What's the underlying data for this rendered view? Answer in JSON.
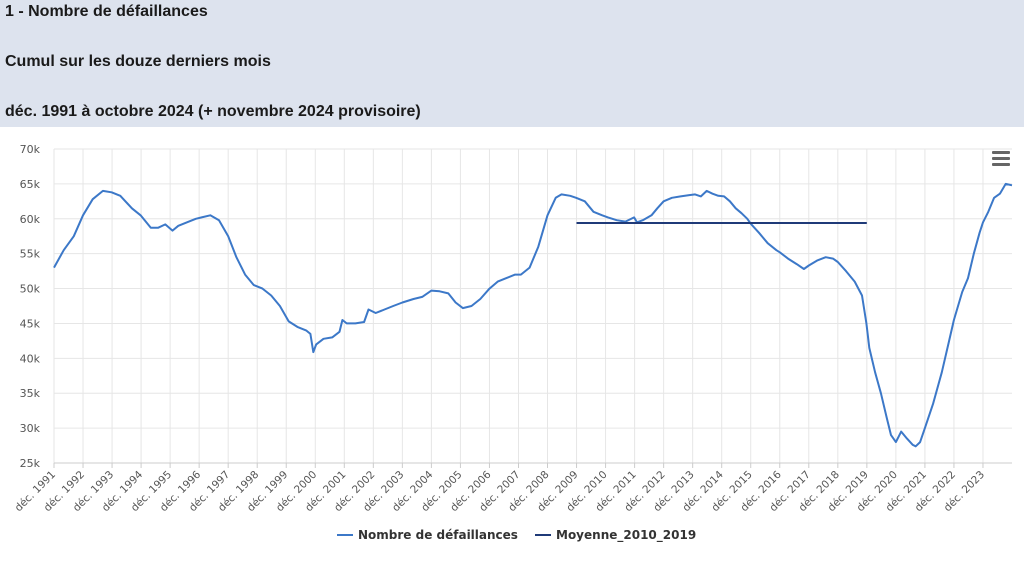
{
  "header": {
    "line1": "1 - Nombre de défaillances",
    "line2": "Cumul sur les douze derniers mois",
    "line3": "déc. 1991 à octobre 2024 (+ novembre 2024 provisoire)"
  },
  "colors": {
    "header_bg": "#dde3ee",
    "series_main": "#3c78c8",
    "series_avg": "#1f3a78",
    "grid": "#e6e6e6"
  },
  "menu_icon": "hamburger-menu-icon",
  "chart_data": {
    "type": "line",
    "title": "1 - Nombre de défaillances",
    "subtitle": "Cumul sur les douze derniers mois — déc. 1991 à octobre 2024 (+ novembre 2024 provisoire)",
    "xlabel": "",
    "ylabel": "",
    "ylim": [
      25000,
      70000
    ],
    "xlim": [
      1991.917,
      2024.917
    ],
    "grid": true,
    "legend": "bottom-center",
    "y_ticks": [
      "25k",
      "30k",
      "35k",
      "40k",
      "45k",
      "50k",
      "55k",
      "60k",
      "65k",
      "70k"
    ],
    "x_ticks": [
      "déc. 1991",
      "déc. 1992",
      "déc. 1993",
      "déc. 1994",
      "déc. 1995",
      "déc. 1996",
      "déc. 1997",
      "déc. 1998",
      "déc. 1999",
      "déc. 2000",
      "déc. 2001",
      "déc. 2002",
      "déc. 2003",
      "déc. 2004",
      "déc. 2005",
      "déc. 2006",
      "déc. 2007",
      "déc. 2008",
      "déc. 2009",
      "déc. 2010",
      "déc. 2011",
      "déc. 2012",
      "déc. 2013",
      "déc. 2014",
      "déc. 2015",
      "déc. 2016",
      "déc. 2017",
      "déc. 2018",
      "déc. 2019",
      "déc. 2020",
      "déc. 2021",
      "déc. 2022",
      "déc. 2023"
    ],
    "series": [
      {
        "name": "Nombre de défaillances",
        "points": [
          [
            1991.917,
            53000
          ],
          [
            1992.25,
            55500
          ],
          [
            1992.6,
            57500
          ],
          [
            1992.917,
            60500
          ],
          [
            1993.25,
            62800
          ],
          [
            1993.6,
            64000
          ],
          [
            1993.9,
            63800
          ],
          [
            1994.2,
            63300
          ],
          [
            1994.6,
            61500
          ],
          [
            1994.9,
            60500
          ],
          [
            1995.25,
            58700
          ],
          [
            1995.5,
            58700
          ],
          [
            1995.75,
            59200
          ],
          [
            1996.0,
            58300
          ],
          [
            1996.2,
            59000
          ],
          [
            1996.5,
            59500
          ],
          [
            1996.8,
            60000
          ],
          [
            1997.0,
            60200
          ],
          [
            1997.3,
            60500
          ],
          [
            1997.6,
            59800
          ],
          [
            1997.917,
            57500
          ],
          [
            1998.2,
            54500
          ],
          [
            1998.5,
            52000
          ],
          [
            1998.8,
            50500
          ],
          [
            1999.1,
            50000
          ],
          [
            1999.4,
            49000
          ],
          [
            1999.7,
            47500
          ],
          [
            2000.0,
            45300
          ],
          [
            2000.3,
            44500
          ],
          [
            2000.6,
            44000
          ],
          [
            2000.75,
            43500
          ],
          [
            2000.85,
            40900
          ],
          [
            2000.95,
            42000
          ],
          [
            2001.2,
            42800
          ],
          [
            2001.5,
            43000
          ],
          [
            2001.75,
            43800
          ],
          [
            2001.85,
            45500
          ],
          [
            2002.0,
            45000
          ],
          [
            2002.3,
            45000
          ],
          [
            2002.6,
            45200
          ],
          [
            2002.75,
            47000
          ],
          [
            2003.0,
            46500
          ],
          [
            2003.3,
            47000
          ],
          [
            2003.6,
            47500
          ],
          [
            2003.917,
            48000
          ],
          [
            2004.3,
            48500
          ],
          [
            2004.6,
            48800
          ],
          [
            2004.917,
            49700
          ],
          [
            2005.2,
            49600
          ],
          [
            2005.5,
            49300
          ],
          [
            2005.75,
            48000
          ],
          [
            2006.0,
            47200
          ],
          [
            2006.3,
            47500
          ],
          [
            2006.6,
            48500
          ],
          [
            2006.917,
            50000
          ],
          [
            2007.2,
            51000
          ],
          [
            2007.5,
            51500
          ],
          [
            2007.8,
            52000
          ],
          [
            2008.0,
            52000
          ],
          [
            2008.3,
            53000
          ],
          [
            2008.6,
            56000
          ],
          [
            2008.917,
            60500
          ],
          [
            2009.2,
            63000
          ],
          [
            2009.4,
            63500
          ],
          [
            2009.7,
            63300
          ],
          [
            2009.9,
            63000
          ],
          [
            2010.2,
            62500
          ],
          [
            2010.5,
            61000
          ],
          [
            2010.8,
            60500
          ],
          [
            2011.0,
            60200
          ],
          [
            2011.3,
            59800
          ],
          [
            2011.6,
            59600
          ],
          [
            2011.9,
            60200
          ],
          [
            2012.0,
            59500
          ],
          [
            2012.2,
            59800
          ],
          [
            2012.5,
            60500
          ],
          [
            2012.7,
            61500
          ],
          [
            2012.917,
            62500
          ],
          [
            2013.2,
            63000
          ],
          [
            2013.5,
            63200
          ],
          [
            2013.8,
            63400
          ],
          [
            2014.0,
            63500
          ],
          [
            2014.2,
            63200
          ],
          [
            2014.4,
            64000
          ],
          [
            2014.6,
            63600
          ],
          [
            2014.8,
            63300
          ],
          [
            2015.0,
            63200
          ],
          [
            2015.2,
            62500
          ],
          [
            2015.4,
            61500
          ],
          [
            2015.6,
            60800
          ],
          [
            2015.8,
            60000
          ],
          [
            2015.917,
            59300
          ],
          [
            2016.2,
            58000
          ],
          [
            2016.5,
            56500
          ],
          [
            2016.8,
            55500
          ],
          [
            2016.917,
            55200
          ],
          [
            2017.2,
            54300
          ],
          [
            2017.5,
            53500
          ],
          [
            2017.75,
            52800
          ],
          [
            2017.917,
            53300
          ],
          [
            2018.2,
            54000
          ],
          [
            2018.5,
            54500
          ],
          [
            2018.75,
            54300
          ],
          [
            2018.917,
            53800
          ],
          [
            2019.2,
            52500
          ],
          [
            2019.5,
            51000
          ],
          [
            2019.75,
            49000
          ],
          [
            2019.9,
            45000
          ],
          [
            2020.0,
            41500
          ],
          [
            2020.2,
            38000
          ],
          [
            2020.4,
            35000
          ],
          [
            2020.6,
            31500
          ],
          [
            2020.75,
            29000
          ],
          [
            2020.917,
            28000
          ],
          [
            2021.1,
            29500
          ],
          [
            2021.3,
            28500
          ],
          [
            2021.5,
            27600
          ],
          [
            2021.6,
            27400
          ],
          [
            2021.75,
            28000
          ],
          [
            2021.917,
            30000
          ],
          [
            2022.2,
            33500
          ],
          [
            2022.5,
            38000
          ],
          [
            2022.75,
            42500
          ],
          [
            2022.917,
            45500
          ],
          [
            2023.2,
            49500
          ],
          [
            2023.4,
            51500
          ],
          [
            2023.6,
            55000
          ],
          [
            2023.8,
            58000
          ],
          [
            2023.917,
            59500
          ],
          [
            2024.1,
            61000
          ],
          [
            2024.3,
            63000
          ],
          [
            2024.5,
            63600
          ],
          [
            2024.7,
            65000
          ],
          [
            2024.917,
            64800
          ]
        ]
      },
      {
        "name": "Moyenne_2010_2019",
        "points": [
          [
            2009.917,
            59400
          ],
          [
            2019.917,
            59400
          ]
        ]
      }
    ]
  }
}
